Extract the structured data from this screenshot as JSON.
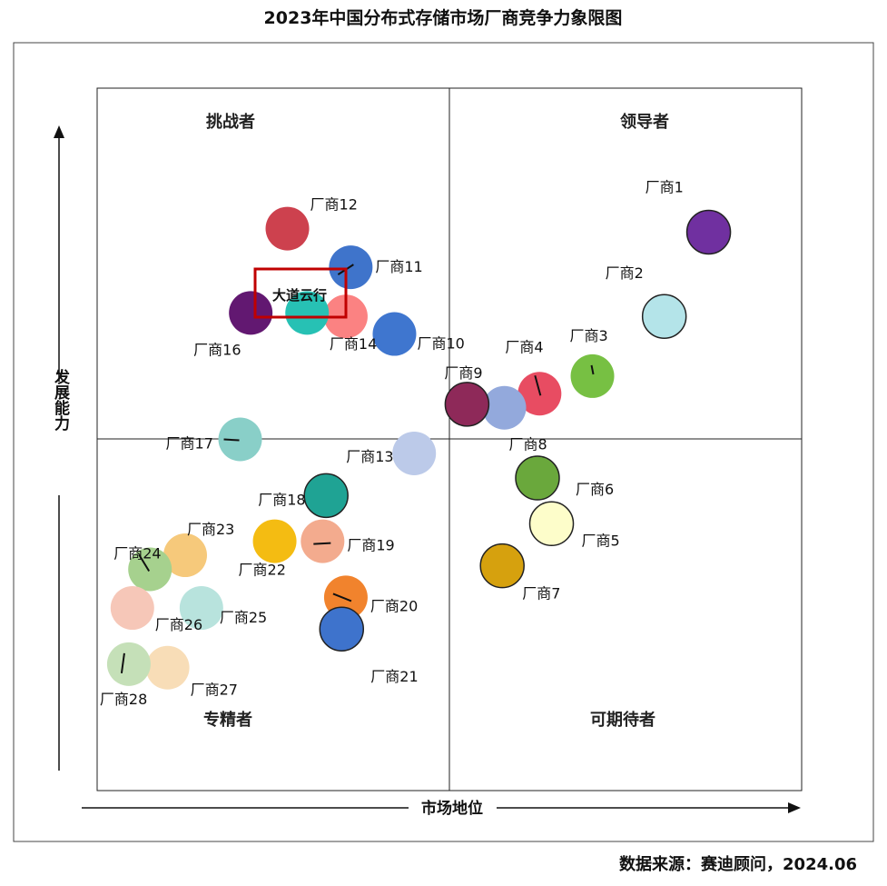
{
  "chart_data": {
    "type": "scatter",
    "title": "2023年中国分布式存储市场厂商竞争力象限图",
    "xlabel": "市场地位",
    "ylabel": "发展能力",
    "xlim": [
      0,
      100
    ],
    "ylim": [
      0,
      100
    ],
    "quadrants": {
      "top_left": "挑战者",
      "top_right": "领导者",
      "bottom_left": "专精者",
      "bottom_right": "可期待者"
    },
    "highlight_label": "大道云行",
    "source": "数据来源：赛迪顾问，2024.06",
    "points": [
      {
        "label": "厂商1",
        "x": 86.8,
        "y": 79.5,
        "color": "#7030a0",
        "outline": true
      },
      {
        "label": "厂商2",
        "x": 80.5,
        "y": 67.5,
        "color": "#b4e4e9",
        "outline": true
      },
      {
        "label": "厂商3",
        "x": 70.3,
        "y": 59.0,
        "color": "#77c043",
        "outline": false
      },
      {
        "label": "厂商4",
        "x": 62.8,
        "y": 56.5,
        "color": "#e84c62",
        "outline": false
      },
      {
        "label": "厂商5",
        "x": 64.5,
        "y": 38.0,
        "color": "#fdfdca",
        "outline": true
      },
      {
        "label": "厂商6",
        "x": 62.5,
        "y": 44.5,
        "color": "#6aa83c",
        "outline": true
      },
      {
        "label": "厂商7",
        "x": 57.5,
        "y": 32.0,
        "color": "#d6a10e",
        "outline": true
      },
      {
        "label": "厂商8",
        "x": 57.8,
        "y": 54.5,
        "color": "#93a9dc",
        "outline": false
      },
      {
        "label": "厂商9",
        "x": 52.5,
        "y": 55.0,
        "color": "#8e2959",
        "outline": true
      },
      {
        "label": "厂商10",
        "x": 42.2,
        "y": 65.0,
        "color": "#3f76cf",
        "outline": false
      },
      {
        "label": "厂商11",
        "x": 36.0,
        "y": 74.5,
        "color": "#3f74cb",
        "outline": false
      },
      {
        "label": "厂商12",
        "x": 27.0,
        "y": 80.0,
        "color": "#cd414e",
        "outline": false
      },
      {
        "label": "厂商13",
        "x": 45.0,
        "y": 48.0,
        "color": "#bccae9",
        "outline": false
      },
      {
        "label": "厂商14",
        "x": 35.3,
        "y": 67.5,
        "color": "#fb8282",
        "outline": false
      },
      {
        "label": "大道云行",
        "x": 29.8,
        "y": 68.0,
        "color": "#27c1b4",
        "outline": false,
        "no_label": true
      },
      {
        "label": "厂商16",
        "x": 21.8,
        "y": 68.0,
        "color": "#621871",
        "outline": false
      },
      {
        "label": "厂商17",
        "x": 20.3,
        "y": 50.0,
        "color": "#89cfc8",
        "outline": false
      },
      {
        "label": "厂商18",
        "x": 32.5,
        "y": 42.0,
        "color": "#1fa394",
        "outline": true
      },
      {
        "label": "厂商19",
        "x": 32.0,
        "y": 35.5,
        "color": "#f3ab8e",
        "outline": false
      },
      {
        "label": "厂商20",
        "x": 35.3,
        "y": 27.5,
        "color": "#f1832d",
        "outline": false
      },
      {
        "label": "厂商21",
        "x": 34.7,
        "y": 23.0,
        "color": "#3e73cc",
        "outline": true
      },
      {
        "label": "厂商22",
        "x": 25.2,
        "y": 35.5,
        "color": "#f4bc12",
        "outline": false
      },
      {
        "label": "厂商23",
        "x": 12.5,
        "y": 33.5,
        "color": "#f6c97b",
        "outline": false
      },
      {
        "label": "厂商24",
        "x": 7.5,
        "y": 31.5,
        "color": "#a6d18e",
        "outline": false
      },
      {
        "label": "厂商25",
        "x": 14.8,
        "y": 26.0,
        "color": "#b8e3dd",
        "outline": false
      },
      {
        "label": "厂商26",
        "x": 5.0,
        "y": 26.0,
        "color": "#f6c7b8",
        "outline": false
      },
      {
        "label": "厂商27",
        "x": 10.0,
        "y": 17.5,
        "color": "#f8ddb7",
        "outline": false
      },
      {
        "label": "厂商28",
        "x": 4.5,
        "y": 18.0,
        "color": "#c5e0b8",
        "outline": false
      }
    ]
  }
}
